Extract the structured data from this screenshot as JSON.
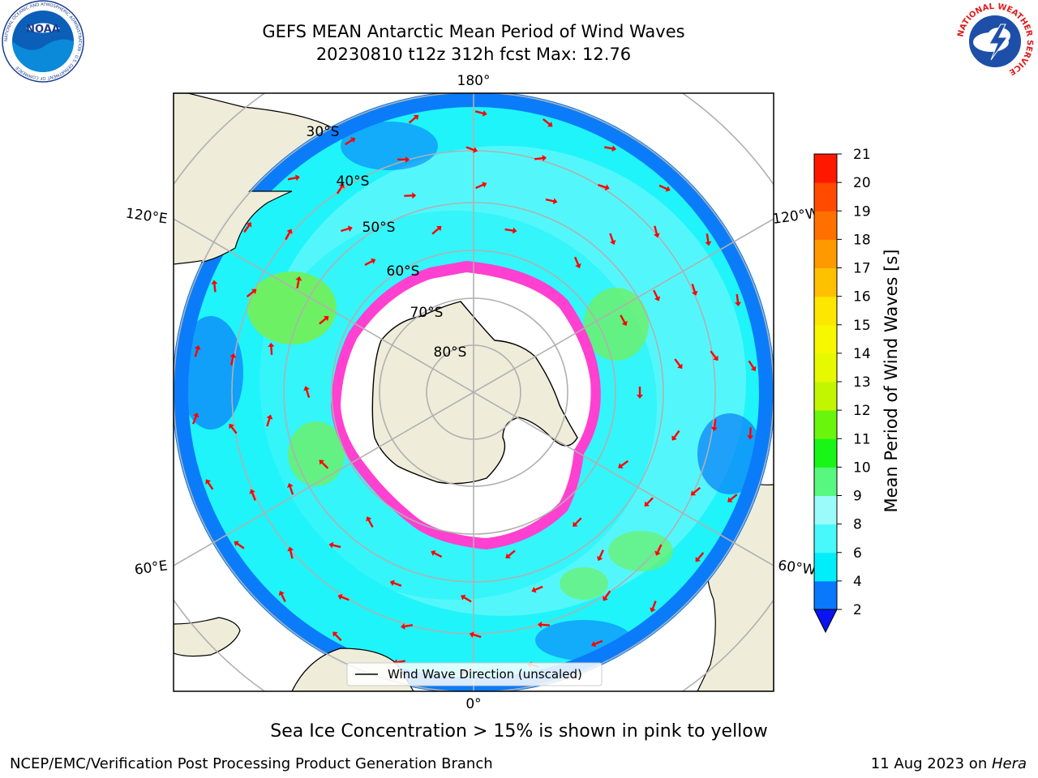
{
  "header": {
    "title_line1": "GEFS MEAN Antarctic Mean Period of Wind Waves",
    "title_line2": "20230810 t12z 312h fcst   Max: 12.76"
  },
  "logos": {
    "noaa_text": "NOAA",
    "noaa_ring_text": "NATIONAL OCEANIC AND ATMOSPHERIC ADMINISTRATION · U.S. DEPARTMENT OF COMMERCE",
    "nws_ring_text": "NATIONAL WEATHER SERVICE"
  },
  "map": {
    "longitude_labels": [
      "180°",
      "120°E",
      "120°W",
      "60°E",
      "60°W",
      "0°"
    ],
    "latitude_labels": [
      "30°S",
      "40°S",
      "50°S",
      "60°S",
      "70°S",
      "80°S"
    ],
    "legend_label": "Wind Wave Direction (unscaled)",
    "colors": {
      "land": "#efedd9",
      "ocean_dark_blue": "#0a7cfa",
      "ocean_cyan": "#1ff4fa",
      "ocean_light_cyan": "#7df9fb",
      "green": "#6ef064",
      "sea_ice_pink": "#ff40d0",
      "arrow_red": "#ff0000"
    }
  },
  "colorbar": {
    "label": "Mean Period of Wind Waves [s]",
    "ticks": [
      "2",
      "4",
      "6",
      "8",
      "9",
      "10",
      "11",
      "12",
      "13",
      "14",
      "15",
      "16",
      "17",
      "18",
      "19",
      "20",
      "21"
    ],
    "colors": [
      "#0a78fa",
      "#00eefa",
      "#47f9fa",
      "#9bfbfb",
      "#58f77f",
      "#19f516",
      "#6af50c",
      "#c2f500",
      "#e6f900",
      "#f7f700",
      "#fde600",
      "#ffc000",
      "#ff9900",
      "#ff7000",
      "#ff4a00",
      "#ff1800"
    ],
    "under_color": "#0a14f0"
  },
  "notes": {
    "sea_ice": "Sea Ice Concentration > 15% is shown in pink to yellow"
  },
  "footer": {
    "left": "NCEP/EMC/Verification Post Processing Product Generation Branch",
    "date": "11 Aug 2023 on ",
    "machine": "Hera"
  }
}
